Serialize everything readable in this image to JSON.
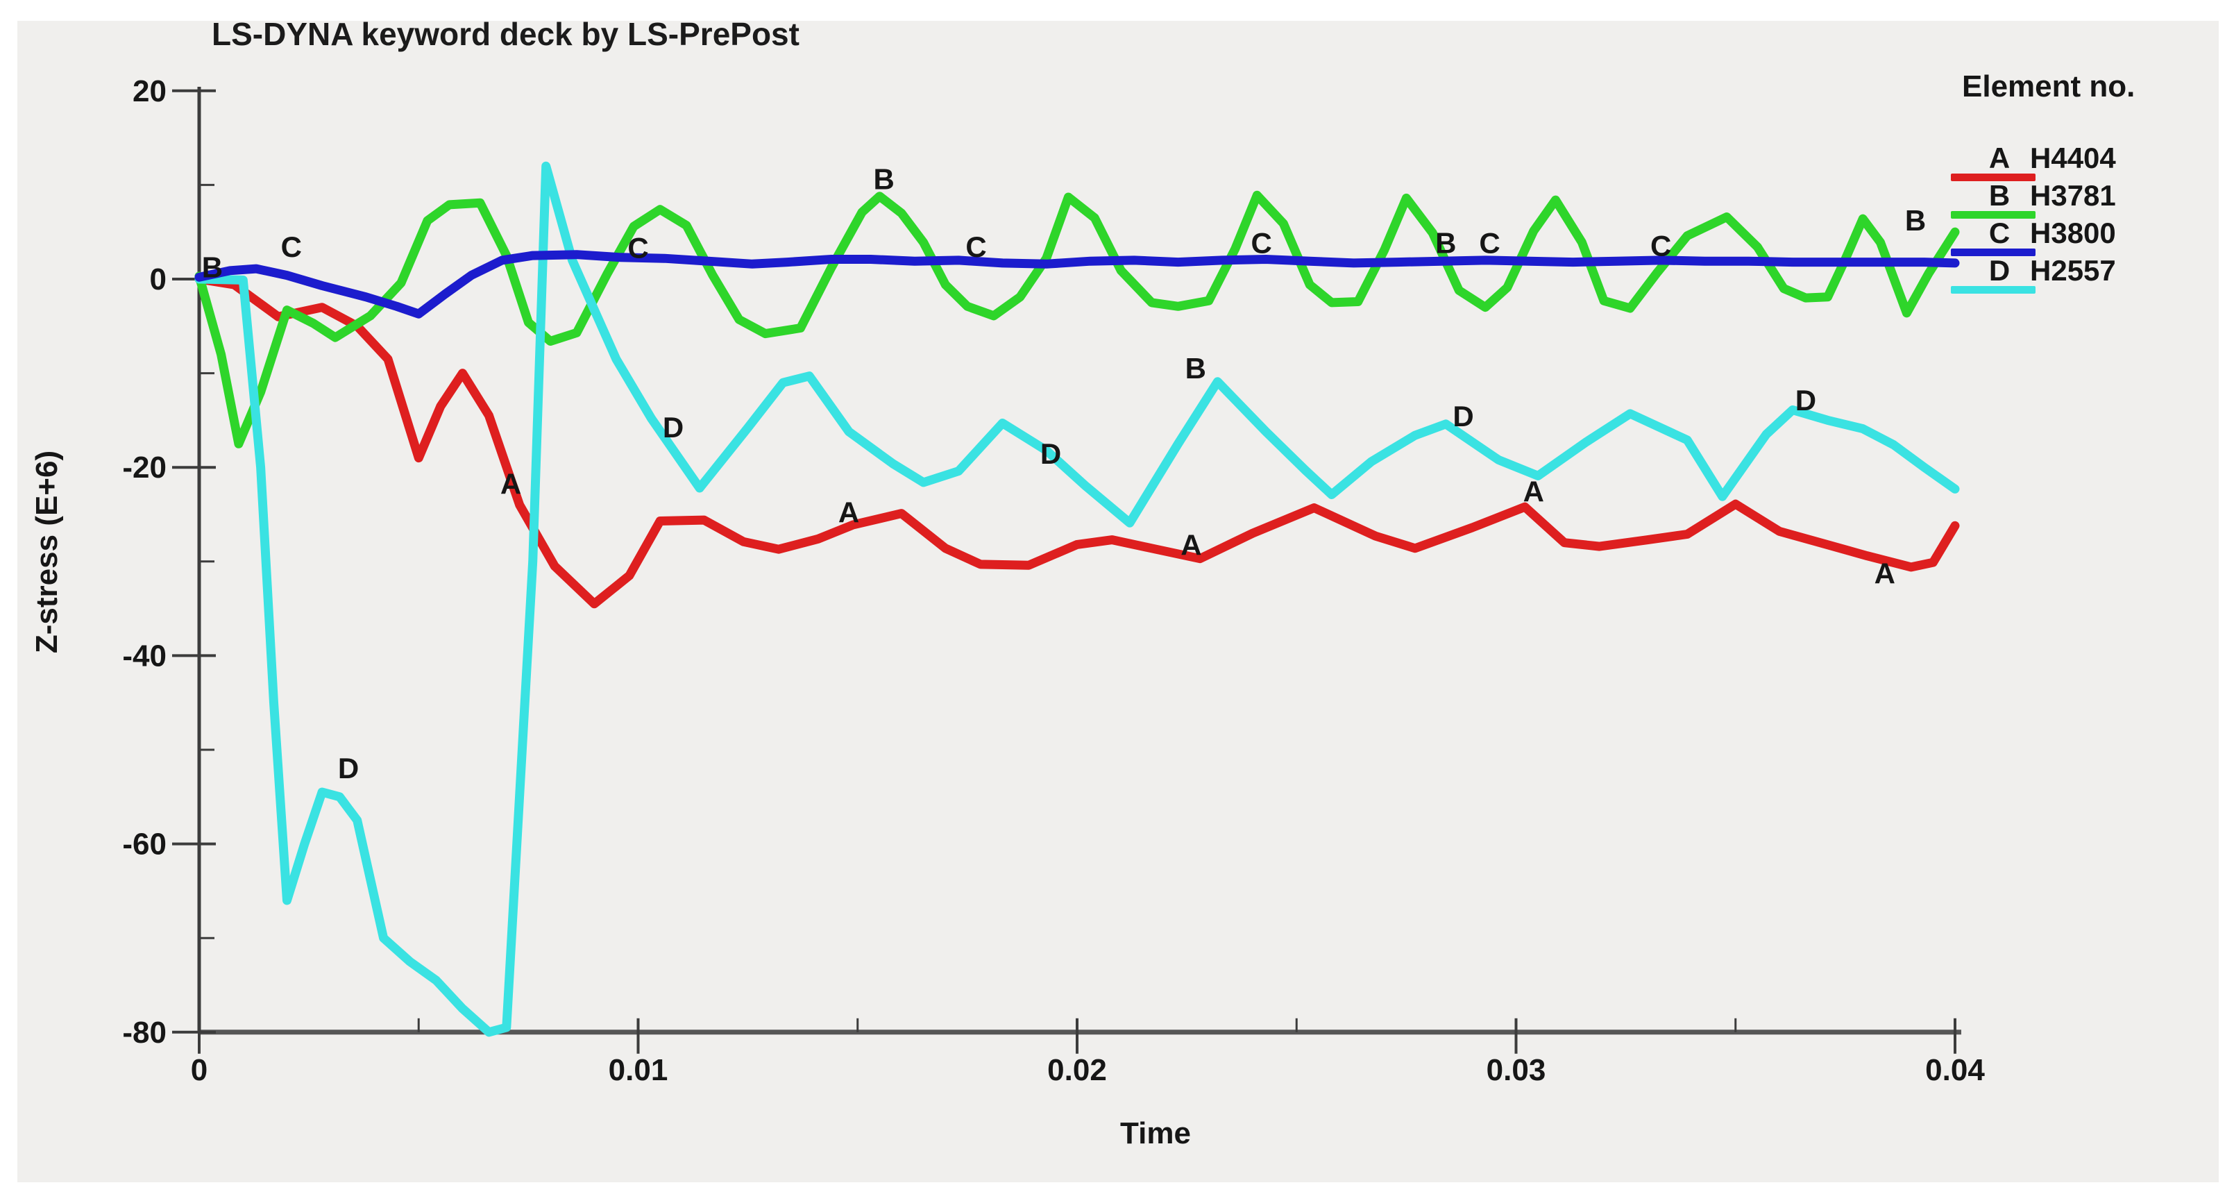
{
  "title": "LS-DYNA keyword deck by LS-PrePost",
  "axes": {
    "x": {
      "label": "Time"
    },
    "y": {
      "label": "Z-stress (E+6)"
    }
  },
  "legend": {
    "title": "Element no.",
    "entries": [
      {
        "letter": "A",
        "name": "H4404",
        "color": "#de1f1f"
      },
      {
        "letter": "B",
        "name": "H3781",
        "color": "#2ed52a"
      },
      {
        "letter": "C",
        "name": "H3800",
        "color": "#1c1ccd"
      },
      {
        "letter": "D",
        "name": "H2557",
        "color": "#3ae2e2"
      }
    ]
  },
  "chart_data": {
    "type": "line",
    "title": "LS-DYNA keyword deck by LS-PrePost",
    "xlabel": "Time",
    "ylabel": "Z-stress (E+6)",
    "xlim": [
      0,
      0.04
    ],
    "ylim": [
      -80,
      20
    ],
    "grid": false,
    "legend_position": "top-right",
    "x_ticks": [
      {
        "value": 0,
        "label": "0"
      },
      {
        "value": 0.01,
        "label": "0.01"
      },
      {
        "value": 0.02,
        "label": "0.02"
      },
      {
        "value": 0.03,
        "label": "0.03"
      },
      {
        "value": 0.04,
        "label": "0.04"
      }
    ],
    "x_minor_ticks": [
      0.005,
      0.015,
      0.025,
      0.035
    ],
    "y_ticks": [
      {
        "value": 20,
        "label": "20"
      },
      {
        "value": 0,
        "label": "0"
      },
      {
        "value": -20,
        "label": "-20"
      },
      {
        "value": -40,
        "label": "-40"
      },
      {
        "value": -60,
        "label": "-60"
      },
      {
        "value": -80,
        "label": "-80"
      }
    ],
    "y_minor_ticks": [
      10,
      -10,
      -30,
      -50,
      -70
    ],
    "series": [
      {
        "letter": "A",
        "name": "H4404",
        "color": "#de1f1f",
        "points": [
          [
            0,
            0
          ],
          [
            0.0008,
            -0.6
          ],
          [
            0.0018,
            -4
          ],
          [
            0.0028,
            -3
          ],
          [
            0.0036,
            -5
          ],
          [
            0.0043,
            -8.5
          ],
          [
            0.005,
            -19
          ],
          [
            0.0055,
            -13.5
          ],
          [
            0.006,
            -10
          ],
          [
            0.0066,
            -14.5
          ],
          [
            0.0073,
            -24
          ],
          [
            0.0081,
            -30.5
          ],
          [
            0.009,
            -34.5
          ],
          [
            0.0098,
            -31.5
          ],
          [
            0.0105,
            -25.7
          ],
          [
            0.0115,
            -25.6
          ],
          [
            0.0124,
            -27.9
          ],
          [
            0.0132,
            -28.7
          ],
          [
            0.0141,
            -27.6
          ],
          [
            0.0149,
            -26.1
          ],
          [
            0.016,
            -24.9
          ],
          [
            0.017,
            -28.6
          ],
          [
            0.0178,
            -30.3
          ],
          [
            0.0189,
            -30.4
          ],
          [
            0.02,
            -28.2
          ],
          [
            0.0208,
            -27.7
          ],
          [
            0.0218,
            -28.7
          ],
          [
            0.0228,
            -29.7
          ],
          [
            0.024,
            -27
          ],
          [
            0.0254,
            -24.3
          ],
          [
            0.0268,
            -27.3
          ],
          [
            0.0277,
            -28.6
          ],
          [
            0.029,
            -26.4
          ],
          [
            0.0302,
            -24.2
          ],
          [
            0.0311,
            -28
          ],
          [
            0.0319,
            -28.4
          ],
          [
            0.033,
            -27.7
          ],
          [
            0.0339,
            -27.1
          ],
          [
            0.035,
            -23.9
          ],
          [
            0.036,
            -26.8
          ],
          [
            0.037,
            -28.1
          ],
          [
            0.038,
            -29.4
          ],
          [
            0.039,
            -30.6
          ],
          [
            0.0395,
            -30.1
          ],
          [
            0.04,
            -26.2
          ]
        ],
        "labels": [
          [
            0.0071,
            -21.8
          ],
          [
            0.0148,
            -24.8
          ],
          [
            0.0226,
            -28.3
          ],
          [
            0.0304,
            -22.6
          ],
          [
            0.0384,
            -31.3
          ]
        ]
      },
      {
        "letter": "B",
        "name": "H3781",
        "color": "#2ed52a",
        "points": [
          [
            0,
            0.3
          ],
          [
            0.0005,
            -8
          ],
          [
            0.0009,
            -17.5
          ],
          [
            0.0014,
            -12
          ],
          [
            0.002,
            -3.3
          ],
          [
            0.0026,
            -4.7
          ],
          [
            0.0031,
            -6.2
          ],
          [
            0.0039,
            -3.9
          ],
          [
            0.0046,
            -0.4
          ],
          [
            0.0052,
            6.2
          ],
          [
            0.0057,
            7.9
          ],
          [
            0.0064,
            8.1
          ],
          [
            0.007,
            2.5
          ],
          [
            0.0075,
            -4.6
          ],
          [
            0.008,
            -6.6
          ],
          [
            0.0086,
            -5.7
          ],
          [
            0.0093,
            0.6
          ],
          [
            0.0099,
            5.6
          ],
          [
            0.0105,
            7.4
          ],
          [
            0.0111,
            5.7
          ],
          [
            0.0117,
            0.4
          ],
          [
            0.0123,
            -4.3
          ],
          [
            0.0129,
            -5.8
          ],
          [
            0.0137,
            -5.2
          ],
          [
            0.0144,
            1.2
          ],
          [
            0.0151,
            7.1
          ],
          [
            0.0155,
            8.8
          ],
          [
            0.016,
            7
          ],
          [
            0.0165,
            3.9
          ],
          [
            0.017,
            -0.6
          ],
          [
            0.0175,
            -2.9
          ],
          [
            0.0181,
            -3.9
          ],
          [
            0.0187,
            -1.9
          ],
          [
            0.0193,
            2.2
          ],
          [
            0.0198,
            8.7
          ],
          [
            0.0204,
            6.5
          ],
          [
            0.021,
            0.9
          ],
          [
            0.0217,
            -2.5
          ],
          [
            0.0223,
            -2.9
          ],
          [
            0.023,
            -2.3
          ],
          [
            0.0236,
            3.2
          ],
          [
            0.0241,
            8.9
          ],
          [
            0.0247,
            5.9
          ],
          [
            0.0253,
            -0.6
          ],
          [
            0.0258,
            -2.5
          ],
          [
            0.0264,
            -2.4
          ],
          [
            0.027,
            3.1
          ],
          [
            0.0275,
            8.6
          ],
          [
            0.0281,
            4.9
          ],
          [
            0.0287,
            -1.2
          ],
          [
            0.0293,
            -3
          ],
          [
            0.0298,
            -0.9
          ],
          [
            0.0304,
            5.1
          ],
          [
            0.0309,
            8.4
          ],
          [
            0.0315,
            3.9
          ],
          [
            0.032,
            -2.3
          ],
          [
            0.0326,
            -3.1
          ],
          [
            0.0332,
            0.6
          ],
          [
            0.0339,
            4.6
          ],
          [
            0.0348,
            6.6
          ],
          [
            0.0355,
            3.4
          ],
          [
            0.0361,
            -1
          ],
          [
            0.0366,
            -2
          ],
          [
            0.0371,
            -1.9
          ],
          [
            0.0375,
            2.1
          ],
          [
            0.0379,
            6.4
          ],
          [
            0.0383,
            3.9
          ],
          [
            0.0389,
            -3.6
          ],
          [
            0.0394,
            0.6
          ],
          [
            0.04,
            5
          ]
        ],
        "labels": [
          [
            0.0003,
            1.2
          ],
          [
            0.0156,
            10.6
          ],
          [
            0.0227,
            -9.5
          ],
          [
            0.0284,
            3.8
          ],
          [
            0.0391,
            6.2
          ]
        ]
      },
      {
        "letter": "C",
        "name": "H3800",
        "color": "#1c1ccd",
        "points": [
          [
            0,
            0.2
          ],
          [
            0.0007,
            0.9
          ],
          [
            0.0013,
            1.1
          ],
          [
            0.002,
            0.4
          ],
          [
            0.0028,
            -0.7
          ],
          [
            0.0038,
            -1.9
          ],
          [
            0.0045,
            -2.9
          ],
          [
            0.005,
            -3.7
          ],
          [
            0.0056,
            -1.6
          ],
          [
            0.0062,
            0.4
          ],
          [
            0.0069,
            2
          ],
          [
            0.0076,
            2.5
          ],
          [
            0.0086,
            2.6
          ],
          [
            0.0096,
            2.3
          ],
          [
            0.0106,
            2.2
          ],
          [
            0.0116,
            1.9
          ],
          [
            0.0126,
            1.6
          ],
          [
            0.0134,
            1.8
          ],
          [
            0.0144,
            2.1
          ],
          [
            0.0153,
            2.1
          ],
          [
            0.0163,
            1.9
          ],
          [
            0.0173,
            2
          ],
          [
            0.0183,
            1.7
          ],
          [
            0.0193,
            1.6
          ],
          [
            0.0203,
            1.9
          ],
          [
            0.0213,
            2
          ],
          [
            0.0223,
            1.8
          ],
          [
            0.0233,
            2
          ],
          [
            0.0243,
            2.1
          ],
          [
            0.0253,
            1.9
          ],
          [
            0.0263,
            1.7
          ],
          [
            0.0273,
            1.8
          ],
          [
            0.0283,
            1.9
          ],
          [
            0.0293,
            2
          ],
          [
            0.0303,
            1.9
          ],
          [
            0.0313,
            1.8
          ],
          [
            0.0323,
            1.9
          ],
          [
            0.0333,
            2
          ],
          [
            0.0343,
            1.9
          ],
          [
            0.0353,
            1.9
          ],
          [
            0.0363,
            1.8
          ],
          [
            0.0373,
            1.8
          ],
          [
            0.0383,
            1.8
          ],
          [
            0.0393,
            1.8
          ],
          [
            0.04,
            1.7
          ]
        ],
        "labels": [
          [
            0.0021,
            3.4
          ],
          [
            0.01,
            3.3
          ],
          [
            0.0177,
            3.4
          ],
          [
            0.0242,
            3.8
          ],
          [
            0.0294,
            3.8
          ],
          [
            0.0333,
            3.5
          ]
        ]
      },
      {
        "letter": "D",
        "name": "H2557",
        "color": "#3ae2e2",
        "points": [
          [
            0,
            0
          ],
          [
            0.001,
            -0.1
          ],
          [
            0.0014,
            -20
          ],
          [
            0.0017,
            -45
          ],
          [
            0.002,
            -66
          ],
          [
            0.0024,
            -60
          ],
          [
            0.0028,
            -54.5
          ],
          [
            0.0032,
            -55
          ],
          [
            0.0036,
            -57.5
          ],
          [
            0.0042,
            -70
          ],
          [
            0.0048,
            -72.5
          ],
          [
            0.0054,
            -74.5
          ],
          [
            0.006,
            -77.5
          ],
          [
            0.0066,
            -80
          ],
          [
            0.007,
            -79.5
          ],
          [
            0.0076,
            -30
          ],
          [
            0.0079,
            12
          ],
          [
            0.0085,
            2
          ],
          [
            0.0095,
            -8.5
          ],
          [
            0.0103,
            -14.8
          ],
          [
            0.0114,
            -22.2
          ],
          [
            0.0125,
            -15.8
          ],
          [
            0.0133,
            -11
          ],
          [
            0.0139,
            -10.3
          ],
          [
            0.0148,
            -16.2
          ],
          [
            0.0158,
            -19.6
          ],
          [
            0.0165,
            -21.6
          ],
          [
            0.0173,
            -20.4
          ],
          [
            0.0183,
            -15.3
          ],
          [
            0.0193,
            -18.2
          ],
          [
            0.0202,
            -22
          ],
          [
            0.0212,
            -25.9
          ],
          [
            0.0223,
            -17.5
          ],
          [
            0.0232,
            -10.9
          ],
          [
            0.0243,
            -16.2
          ],
          [
            0.0252,
            -20.3
          ],
          [
            0.0258,
            -22.9
          ],
          [
            0.0267,
            -19.4
          ],
          [
            0.0277,
            -16.6
          ],
          [
            0.0284,
            -15.4
          ],
          [
            0.0296,
            -19.2
          ],
          [
            0.0305,
            -20.9
          ],
          [
            0.0316,
            -17.3
          ],
          [
            0.0326,
            -14.3
          ],
          [
            0.0339,
            -17.1
          ],
          [
            0.0347,
            -23.1
          ],
          [
            0.0357,
            -16.5
          ],
          [
            0.0363,
            -13.9
          ],
          [
            0.0371,
            -15
          ],
          [
            0.0379,
            -15.9
          ],
          [
            0.0386,
            -17.6
          ],
          [
            0.0393,
            -20
          ],
          [
            0.04,
            -22.3
          ]
        ],
        "labels": [
          [
            0.0034,
            -52
          ],
          [
            0.0108,
            -15.8
          ],
          [
            0.0194,
            -18.6
          ],
          [
            0.0288,
            -14.6
          ],
          [
            0.0366,
            -12.9
          ]
        ]
      }
    ]
  }
}
